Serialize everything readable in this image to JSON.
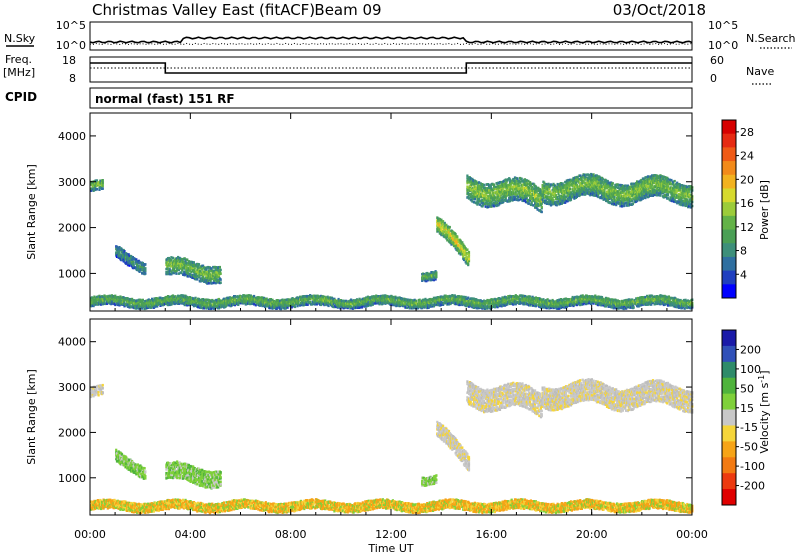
{
  "header": {
    "title": "Christmas Valley East (fitACF)",
    "beam": "Beam 09",
    "date": "03/Oct/2018"
  },
  "status_panel": {
    "nsky_label": "N.Sky",
    "nsky_ticks": [
      "10^5",
      "10^0"
    ],
    "nsearch_label": "N.Search",
    "nsearch_ticks": [
      "10^5",
      "10^0"
    ],
    "freq_label": "Freq.",
    "freq_unit": "[MHz]",
    "freq_ticks": [
      "18",
      "8"
    ],
    "nave_label": "Nave",
    "nave_ticks": [
      "60",
      "0"
    ],
    "cpid_label": "CPID",
    "cpid_value": "normal (fast) 151 RF"
  },
  "chart_data": [
    {
      "type": "heatmap",
      "name": "power",
      "ylabel": "Slant Range [km]",
      "xlabel": "Time UT",
      "x_ticks": [
        "00:00",
        "04:00",
        "08:00",
        "12:00",
        "16:00",
        "20:00",
        "00:00"
      ],
      "xlim_hours": [
        0,
        24
      ],
      "y_ticks": [
        "1000",
        "2000",
        "3000",
        "4000"
      ],
      "ylim": [
        180,
        4500
      ],
      "colorbar_label": "Power [dB]",
      "colorbar_ticks": [
        "4",
        "8",
        "12",
        "16",
        "20",
        "24",
        "28"
      ],
      "colorbar_range": [
        0,
        30
      ],
      "colorbar_colors": [
        "#0000ff",
        "#1f3fbf",
        "#2f6fa0",
        "#3d8f7a",
        "#4a9f55",
        "#63b247",
        "#9ccc3a",
        "#d6d92e",
        "#f2b21f",
        "#f28a1a",
        "#ef5a16",
        "#e62a12",
        "#d60000"
      ],
      "echo_regions": [
        {
          "start_h": 0.0,
          "end_h": 0.5,
          "center_km": [
            2900,
            2900
          ],
          "width_km": 220,
          "level": 14
        },
        {
          "start_h": 1.0,
          "end_h": 2.2,
          "center_km": [
            1450,
            1150
          ],
          "width_km": 260,
          "level": 9
        },
        {
          "start_h": 3.0,
          "end_h": 5.2,
          "center_km": [
            1100,
            1050
          ],
          "width_km": 380,
          "level": 14
        },
        {
          "start_h": 13.2,
          "end_h": 13.8,
          "center_km": [
            950,
            950
          ],
          "width_km": 180,
          "level": 13
        },
        {
          "start_h": 13.8,
          "end_h": 15.1,
          "center_km": [
            2050,
            1300
          ],
          "width_km": 350,
          "level": 19
        },
        {
          "start_h": 15.0,
          "end_h": 18.0,
          "center_km": [
            2900,
            2650
          ],
          "width_km": 520,
          "level": 15
        },
        {
          "start_h": 18.0,
          "end_h": 24.0,
          "center_km": [
            2850,
            2800
          ],
          "width_km": 480,
          "level": 14
        },
        {
          "start_h": 0.0,
          "end_h": 24.0,
          "center_km": [
            380,
            380
          ],
          "width_km": 200,
          "level": 13
        }
      ]
    },
    {
      "type": "heatmap",
      "name": "velocity",
      "ylabel": "Slant Range [km]",
      "xlabel": "Time UT",
      "x_ticks": [
        "00:00",
        "04:00",
        "08:00",
        "12:00",
        "16:00",
        "20:00",
        "00:00"
      ],
      "xlim_hours": [
        0,
        24
      ],
      "y_ticks": [
        "1000",
        "2000",
        "3000",
        "4000"
      ],
      "ylim": [
        180,
        4500
      ],
      "colorbar_label": "Velocity [m s^-1]",
      "colorbar_ticks": [
        "200",
        "100",
        "50",
        "15",
        "-15",
        "-50",
        "-100",
        "-200"
      ],
      "colorbar_colors": [
        "#1a1aa8",
        "#3050b8",
        "#2e8b6a",
        "#4fb33c",
        "#7fd03a",
        "#c8c8c8",
        "#f5d53a",
        "#f6a417",
        "#f27a12",
        "#ec3a10",
        "#e00000"
      ],
      "echo_regions": [
        {
          "start_h": 0.0,
          "end_h": 0.5,
          "center_km": [
            2900,
            2900
          ],
          "width_km": 220,
          "level": "gray"
        },
        {
          "start_h": 1.0,
          "end_h": 2.2,
          "center_km": [
            1450,
            1150
          ],
          "width_km": 260,
          "level": "green"
        },
        {
          "start_h": 3.0,
          "end_h": 5.2,
          "center_km": [
            1100,
            1050
          ],
          "width_km": 380,
          "level": "green"
        },
        {
          "start_h": 13.2,
          "end_h": 13.8,
          "center_km": [
            950,
            950
          ],
          "width_km": 180,
          "level": "green"
        },
        {
          "start_h": 13.8,
          "end_h": 15.1,
          "center_km": [
            2050,
            1300
          ],
          "width_km": 350,
          "level": "gray"
        },
        {
          "start_h": 15.0,
          "end_h": 18.0,
          "center_km": [
            2900,
            2650
          ],
          "width_km": 520,
          "level": "gray"
        },
        {
          "start_h": 18.0,
          "end_h": 24.0,
          "center_km": [
            2850,
            2800
          ],
          "width_km": 480,
          "level": "gray"
        },
        {
          "start_h": 0.0,
          "end_h": 24.0,
          "center_km": [
            380,
            380
          ],
          "width_km": 200,
          "level": "orange"
        }
      ]
    }
  ]
}
